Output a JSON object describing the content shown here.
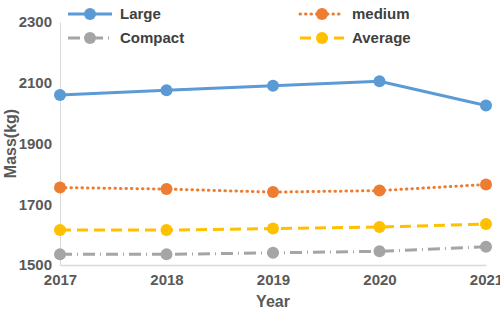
{
  "chart_data": {
    "type": "line",
    "x_label": "Year",
    "y_label": "Mass(kg)",
    "categories": [
      "2017",
      "2018",
      "2019",
      "2020",
      "2021"
    ],
    "series": [
      {
        "name": "Large",
        "color": "#5b9bd5",
        "line_style": "solid",
        "marker": "circle",
        "values": [
          2060,
          2075,
          2090,
          2105,
          2025
        ]
      },
      {
        "name": "medium",
        "color": "#ed7d31",
        "line_style": "dotted",
        "marker": "circle",
        "values": [
          1755,
          1750,
          1740,
          1745,
          1765
        ]
      },
      {
        "name": "Compact",
        "color": "#a5a5a5",
        "line_style": "dashdot",
        "marker": "circle",
        "values": [
          1535,
          1535,
          1540,
          1545,
          1560
        ]
      },
      {
        "name": "Average",
        "color": "#ffc000",
        "line_style": "dashed",
        "marker": "circle",
        "values": [
          1615,
          1615,
          1620,
          1625,
          1635
        ]
      }
    ],
    "ylim": [
      1500,
      2300
    ],
    "yticks": [
      1500,
      1700,
      1900,
      2100,
      2300
    ],
    "grid": false,
    "legend": "top"
  }
}
